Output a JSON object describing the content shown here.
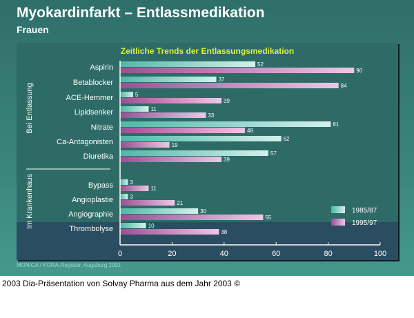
{
  "title": "Myokardinfarkt – Entlassmedikation",
  "subtitle": "Frauen",
  "source": "MONICA / KORA-Register, Augsburg 2001",
  "caption": "2003 Dia-Präsentation von Solvay Pharma aus dem Jahr 2003 ©",
  "chart_data": {
    "type": "bar",
    "orientation": "horizontal",
    "title": "Zeitliche Trends der Entlassungsmedikation",
    "groups": [
      {
        "label": "Bei Entlassung",
        "categories": [
          "Aspirin",
          "Betablocker",
          "ACE-Hemmer",
          "Lipidsenker",
          "Nitrate",
          "Ca-Antagonisten",
          "Diuretika"
        ]
      },
      {
        "label": "Im Krankenhaus",
        "categories": [
          "Bypass",
          "Angioplastie",
          "Angiographie",
          "Thrombolyse"
        ]
      }
    ],
    "categories": [
      "Aspirin",
      "Betablocker",
      "ACE-Hemmer",
      "Lipidsenker",
      "Nitrate",
      "Ca-Antagonisten",
      "Diuretika",
      "Bypass",
      "Angioplastie",
      "Angiographie",
      "Thrombolyse"
    ],
    "series": [
      {
        "name": "1985/87",
        "color": "#7fd6c8",
        "values": [
          52,
          37,
          5,
          11,
          81,
          62,
          57,
          3,
          3,
          30,
          10
        ]
      },
      {
        "name": "1995/97",
        "color": "#c07ab8",
        "values": [
          90,
          84,
          39,
          33,
          48,
          19,
          39,
          11,
          21,
          55,
          38
        ]
      }
    ],
    "xlim": [
      0,
      100
    ],
    "xticks": [
      "0",
      "20",
      "40",
      "60",
      "80",
      "100"
    ],
    "legend": "bottom-right",
    "grid": false
  }
}
